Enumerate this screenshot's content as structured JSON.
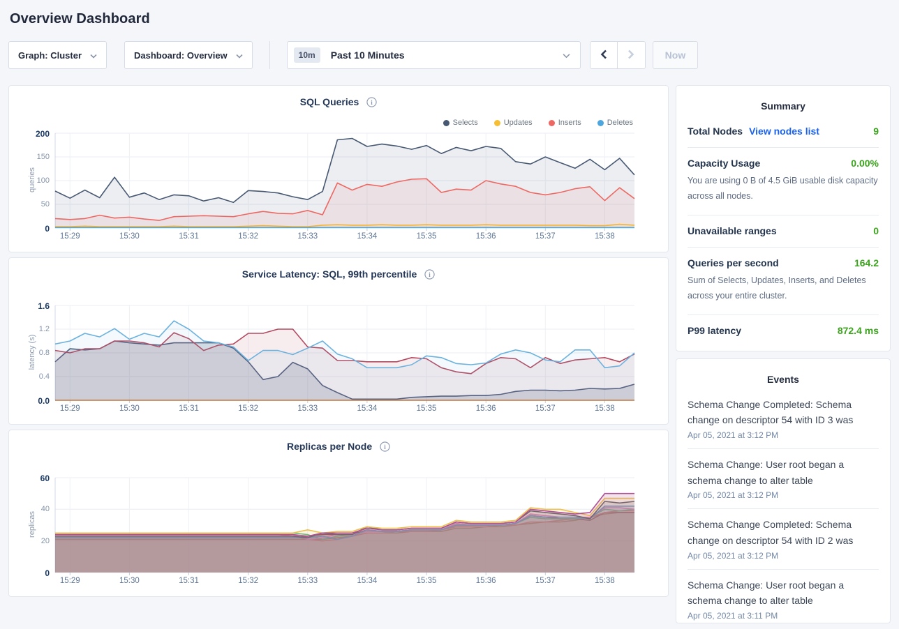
{
  "header": {
    "title": "Overview Dashboard"
  },
  "toolbar": {
    "graph_dropdown": "Graph: Cluster",
    "dashboard_dropdown": "Dashboard: Overview",
    "time_chip": "10m",
    "time_label": "Past 10 Minutes",
    "now_label": "Now"
  },
  "summary": {
    "title": "Summary",
    "value_color": "#3ba41c",
    "link_color": "#1a61f0",
    "rows": [
      {
        "label": "Total Nodes",
        "link": "View nodes list",
        "value": "9"
      },
      {
        "label": "Capacity Usage",
        "value": "0.00%",
        "desc": "You are using 0 B of 4.5 GiB usable disk capacity across all nodes."
      },
      {
        "label": "Unavailable ranges",
        "value": "0"
      },
      {
        "label": "Queries per second",
        "value": "164.2",
        "desc": "Sum of Selects, Updates, Inserts, and Deletes across your entire cluster."
      },
      {
        "label": "P99 latency",
        "value": "872.4 ms"
      }
    ]
  },
  "events": {
    "title": "Events",
    "items": [
      {
        "text": "Schema Change Completed: Schema change on descriptor 54 with ID 3 was",
        "date": "Apr 05, 2021 at 3:12 PM"
      },
      {
        "text": "Schema Change: User root began a schema change to alter table",
        "date": "Apr 05, 2021 at 3:12 PM"
      },
      {
        "text": "Schema Change Completed: Schema change on descriptor 54 with ID 2 was",
        "date": "Apr 05, 2021 at 3:12 PM"
      },
      {
        "text": "Schema Change: User root began a schema change to alter table",
        "date": "Apr 05, 2021 at 3:11 PM"
      }
    ]
  },
  "charts": [
    {
      "type": "area",
      "title": "SQL Queries",
      "unit": "queries",
      "legend": true,
      "ylim": [
        0,
        200
      ],
      "yticks": [
        0,
        50,
        100,
        150,
        200
      ],
      "ytick_labels": [
        "0",
        "50",
        "100",
        "150",
        "200"
      ],
      "xtick_idx": [
        1,
        5,
        9,
        13,
        17,
        21,
        25,
        29,
        33,
        37
      ],
      "xtick_labels": [
        "15:29",
        "15:30",
        "15:31",
        "15:32",
        "15:33",
        "15:34",
        "15:35",
        "15:36",
        "15:37",
        "15:38"
      ],
      "series": [
        {
          "name": "Selects",
          "color": "#475872",
          "fill_opacity": 0.1,
          "values": [
            78,
            63,
            80,
            64,
            107,
            65,
            74,
            60,
            70,
            68,
            57,
            64,
            54,
            79,
            77,
            74,
            66,
            60,
            77,
            186,
            189,
            172,
            177,
            173,
            166,
            174,
            157,
            170,
            163,
            172,
            168,
            140,
            135,
            150,
            138,
            126,
            145,
            123,
            147,
            112
          ]
        },
        {
          "name": "Updates",
          "color": "#f6be33",
          "fill_opacity": 0.08,
          "values": [
            3,
            3,
            4,
            3,
            3,
            3,
            3,
            3,
            4,
            3,
            3,
            3,
            3,
            4,
            5,
            4,
            3,
            3,
            6,
            7,
            6,
            6,
            7,
            6,
            6,
            7,
            6,
            6,
            6,
            7,
            6,
            6,
            6,
            6,
            6,
            6,
            5,
            5,
            8,
            6
          ]
        },
        {
          "name": "Inserts",
          "color": "#ed6863",
          "fill_opacity": 0.09,
          "values": [
            20,
            18,
            20,
            27,
            21,
            23,
            19,
            16,
            24,
            25,
            26,
            25,
            24,
            30,
            35,
            31,
            30,
            37,
            28,
            95,
            80,
            92,
            88,
            97,
            103,
            104,
            75,
            82,
            80,
            100,
            93,
            88,
            75,
            70,
            75,
            83,
            87,
            58,
            85,
            62
          ]
        },
        {
          "name": "Deletes",
          "color": "#4da6dd",
          "fill_opacity": 0.08,
          "values": [
            1,
            1,
            1,
            1,
            1,
            1,
            1,
            1,
            1,
            1,
            1,
            1,
            1,
            1,
            1,
            1,
            1,
            1,
            1,
            1,
            1,
            1,
            1,
            1,
            1,
            1,
            1,
            1,
            1,
            1,
            1,
            1,
            1,
            1,
            1,
            1,
            1,
            1,
            1,
            1
          ]
        }
      ]
    },
    {
      "type": "area",
      "title": "Service Latency: SQL, 99th percentile",
      "unit": "latency (s)",
      "legend": false,
      "ylim": [
        0,
        1.6
      ],
      "yticks": [
        0,
        0.4,
        0.8,
        1.2,
        1.6
      ],
      "ytick_labels": [
        "0.0",
        "0.4",
        "0.8",
        "1.2",
        "1.6"
      ],
      "xtick_idx": [
        1,
        5,
        9,
        13,
        17,
        21,
        25,
        29,
        33,
        37
      ],
      "xtick_labels": [
        "15:29",
        "15:30",
        "15:31",
        "15:32",
        "15:33",
        "15:34",
        "15:35",
        "15:36",
        "15:37",
        "15:38"
      ],
      "series": [
        {
          "name": "",
          "color": "#4d5e7e",
          "fill_opacity": 0.2,
          "values": [
            0.65,
            0.87,
            0.85,
            0.87,
            1.0,
            0.97,
            0.95,
            0.93,
            0.97,
            0.97,
            0.97,
            0.97,
            0.88,
            0.65,
            0.35,
            0.4,
            0.64,
            0.53,
            0.25,
            0.13,
            0.02,
            0.02,
            0.02,
            0.02,
            0.05,
            0.06,
            0.07,
            0.07,
            0.08,
            0.08,
            0.1,
            0.15,
            0.17,
            0.17,
            0.16,
            0.17,
            0.2,
            0.19,
            0.2,
            0.27
          ]
        },
        {
          "name": "",
          "color": "#b34a60",
          "fill_opacity": 0.1,
          "values": [
            0.84,
            0.8,
            0.87,
            0.87,
            1.0,
            1.0,
            0.97,
            0.9,
            1.14,
            1.04,
            0.84,
            0.93,
            0.95,
            1.13,
            1.13,
            1.2,
            1.2,
            0.9,
            0.88,
            0.67,
            0.67,
            0.65,
            0.65,
            0.65,
            0.72,
            0.7,
            0.55,
            0.48,
            0.45,
            0.62,
            0.72,
            0.7,
            0.55,
            0.72,
            0.62,
            0.68,
            0.7,
            0.72,
            0.65,
            0.78
          ]
        },
        {
          "name": "",
          "color": "#6cb2de",
          "fill_opacity": 0.08,
          "values": [
            0.95,
            1.0,
            1.13,
            1.07,
            1.21,
            1.03,
            1.13,
            1.07,
            1.34,
            1.2,
            1.0,
            0.97,
            0.9,
            0.67,
            0.84,
            0.84,
            0.77,
            0.88,
            1.0,
            0.78,
            0.7,
            0.55,
            0.55,
            0.55,
            0.6,
            0.75,
            0.72,
            0.62,
            0.6,
            0.63,
            0.78,
            0.85,
            0.8,
            0.68,
            0.65,
            0.85,
            0.85,
            0.55,
            0.58,
            0.8
          ]
        },
        {
          "name": "",
          "color": "#c1763f",
          "fill": false,
          "fill_opacity": 0,
          "values": [
            0,
            0,
            0,
            0,
            0,
            0,
            0,
            0,
            0,
            0,
            0,
            0,
            0,
            0,
            0,
            0,
            0,
            0,
            0,
            0,
            0,
            0,
            0,
            0,
            0,
            0,
            0,
            0,
            0,
            0,
            0,
            0,
            0,
            0,
            0,
            0,
            0,
            0,
            0,
            0
          ]
        }
      ]
    },
    {
      "type": "area",
      "title": "Replicas per Node",
      "unit": "replicas",
      "legend": false,
      "ylim": [
        0,
        60
      ],
      "yticks": [
        0,
        20,
        40,
        60
      ],
      "ytick_labels": [
        "0",
        "20",
        "40",
        "60"
      ],
      "xtick_idx": [
        1,
        5,
        9,
        13,
        17,
        21,
        25,
        29,
        33,
        37
      ],
      "xtick_labels": [
        "15:29",
        "15:30",
        "15:31",
        "15:32",
        "15:33",
        "15:34",
        "15:35",
        "15:36",
        "15:37",
        "15:38"
      ],
      "series": [
        {
          "name": "",
          "color": "#ab8a64",
          "fill_opacity": 0.16,
          "values": [
            21,
            21,
            21,
            21,
            21,
            21,
            21,
            21,
            21,
            21,
            21,
            21,
            21,
            21,
            21,
            21,
            21,
            21,
            21,
            22,
            23,
            25,
            25,
            25,
            26,
            26,
            26,
            28,
            28,
            29,
            29,
            30,
            31,
            32,
            32,
            33,
            35,
            37,
            38,
            38
          ]
        },
        {
          "name": "",
          "color": "#8f4a54",
          "fill_opacity": 0.16,
          "values": [
            22,
            22,
            22,
            22,
            22,
            22,
            22,
            22,
            22,
            22,
            22,
            22,
            22,
            22,
            22,
            22,
            22,
            23,
            24,
            24,
            24,
            27,
            26,
            26,
            27,
            27,
            27,
            30,
            30,
            30,
            30,
            31,
            36,
            35,
            34,
            34,
            33,
            38,
            38,
            38
          ]
        },
        {
          "name": "",
          "color": "#e07676",
          "fill_opacity": 0.16,
          "values": [
            24,
            24,
            24,
            24,
            24,
            24,
            24,
            24,
            24,
            24,
            24,
            24,
            24,
            24,
            24,
            24,
            23,
            21,
            20,
            21,
            23,
            25,
            25,
            26,
            26,
            26,
            27,
            29,
            29,
            29,
            30,
            30,
            32,
            32,
            33,
            34,
            35,
            38,
            39,
            39
          ]
        },
        {
          "name": "",
          "color": "#5fbd88",
          "fill_opacity": 0.16,
          "values": [
            25,
            25,
            25,
            25,
            25,
            25,
            25,
            25,
            25,
            25,
            25,
            25,
            25,
            25,
            25,
            25,
            25,
            24,
            21,
            23,
            24,
            26,
            26,
            26,
            27,
            27,
            27,
            31,
            30,
            30,
            30,
            31,
            35,
            34,
            34,
            34,
            35,
            40,
            39,
            40
          ]
        },
        {
          "name": "",
          "color": "#e587c6",
          "fill_opacity": 0.16,
          "values": [
            24,
            24,
            24,
            24,
            24,
            24,
            24,
            24,
            24,
            24,
            24,
            24,
            24,
            24,
            24,
            24,
            24,
            21,
            22,
            24,
            24,
            26,
            26,
            26,
            27,
            27,
            27,
            31,
            30,
            30,
            30,
            31,
            37,
            36,
            35,
            35,
            35,
            41,
            41,
            40
          ]
        },
        {
          "name": "",
          "color": "#6d9ad1",
          "fill_opacity": 0.16,
          "values": [
            22,
            22,
            22,
            22,
            22,
            22,
            22,
            22,
            22,
            22,
            22,
            22,
            22,
            22,
            22,
            22,
            22,
            22,
            23,
            21,
            23,
            27,
            26,
            26,
            27,
            27,
            27,
            30,
            30,
            30,
            30,
            31,
            36,
            35,
            35,
            35,
            34,
            42,
            42,
            42
          ]
        },
        {
          "name": "",
          "color": "#51596b",
          "fill_opacity": 0.16,
          "values": [
            23,
            23,
            23,
            23,
            23,
            23,
            23,
            23,
            23,
            23,
            23,
            23,
            23,
            23,
            23,
            23,
            23,
            22,
            25,
            24,
            24,
            29,
            27,
            27,
            28,
            28,
            28,
            32,
            31,
            31,
            31,
            32,
            39,
            38,
            37,
            36,
            34,
            45,
            44,
            45
          ]
        },
        {
          "name": "",
          "color": "#eec04e",
          "fill_opacity": 0.16,
          "values": [
            25,
            25,
            25,
            25,
            25,
            25,
            25,
            25,
            25,
            25,
            25,
            25,
            25,
            25,
            25,
            25,
            25,
            27,
            25,
            26,
            26,
            29,
            28,
            28,
            29,
            29,
            29,
            33,
            32,
            32,
            32,
            33,
            41,
            40,
            40,
            38,
            36,
            47,
            47,
            47
          ]
        },
        {
          "name": "",
          "color": "#b04f93",
          "fill_opacity": 0.16,
          "values": [
            24,
            24,
            24,
            24,
            24,
            24,
            24,
            24,
            24,
            24,
            24,
            24,
            24,
            24,
            24,
            24,
            24,
            23,
            25,
            25,
            25,
            28,
            27,
            27,
            28,
            28,
            28,
            32,
            31,
            31,
            31,
            32,
            40,
            39,
            38,
            37,
            38,
            50,
            50,
            50
          ]
        }
      ]
    }
  ]
}
